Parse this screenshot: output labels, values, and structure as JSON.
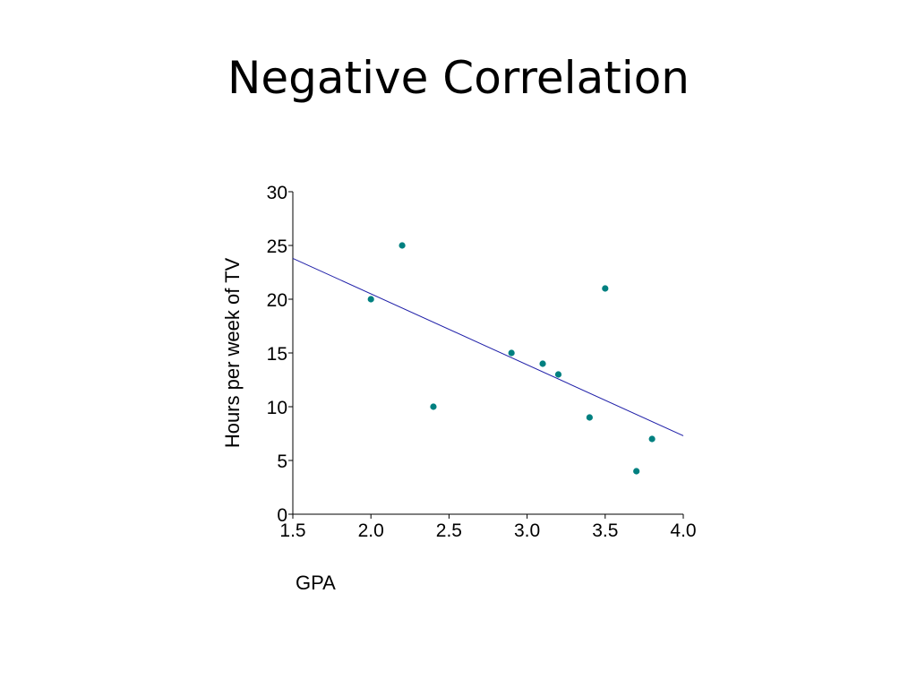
{
  "slide": {
    "title": "Negative Correlation"
  },
  "colors": {
    "points": "#008080",
    "trendline": "#1f1fa8",
    "axis": "#000000"
  },
  "chart_data": {
    "type": "scatter",
    "title": "",
    "xlabel": "GPA",
    "ylabel": "Hours per week of TV",
    "xlim": [
      1.5,
      4.0
    ],
    "ylim": [
      0,
      30
    ],
    "xticks": [
      "1.5",
      "2.0",
      "2.5",
      "3.0",
      "3.5",
      "4.0"
    ],
    "yticks": [
      "0",
      "5",
      "10",
      "15",
      "20",
      "25",
      "30"
    ],
    "grid": false,
    "legend": "none",
    "x": [
      2.0,
      2.2,
      2.4,
      2.9,
      3.1,
      3.2,
      3.4,
      3.5,
      3.7,
      3.8
    ],
    "y": [
      20,
      25,
      10,
      15,
      14,
      13,
      9,
      21,
      4,
      7
    ],
    "trendline": {
      "x": [
        1.5,
        4.0
      ],
      "y": [
        23.8,
        7.3
      ]
    }
  }
}
